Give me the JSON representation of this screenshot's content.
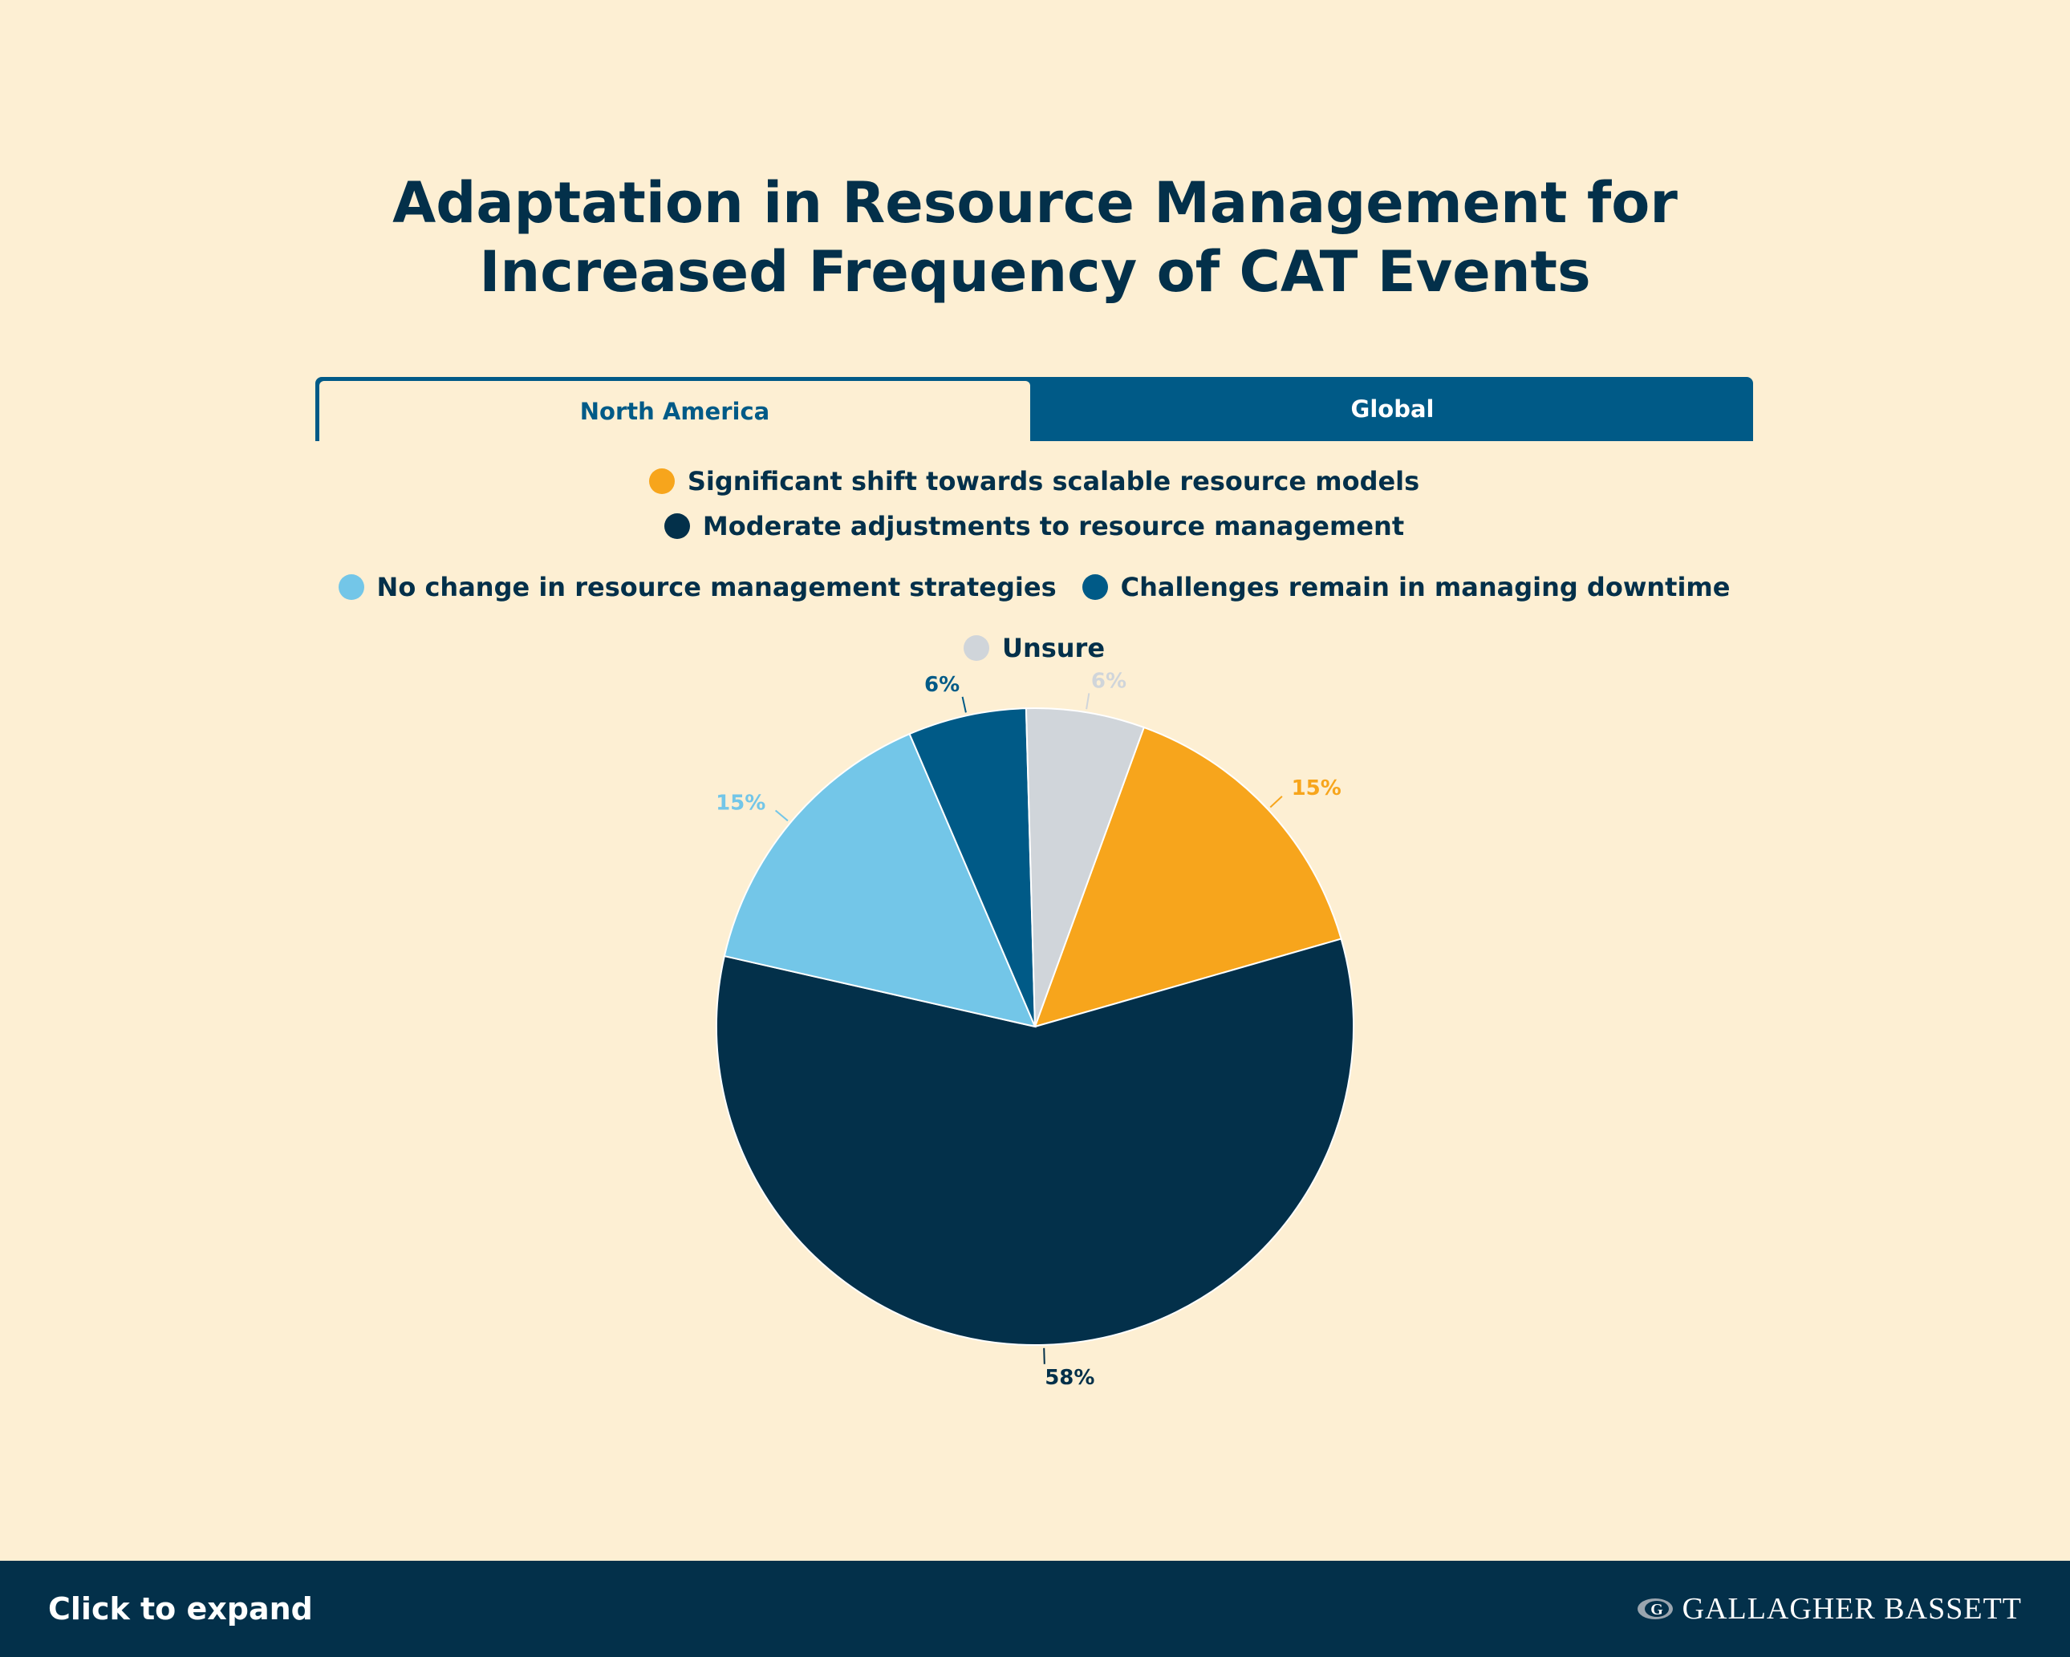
{
  "title": {
    "line1": "Adaptation in Resource Management for",
    "line2": "Increased Frequency of CAT Events"
  },
  "tabs": [
    {
      "label": "North America",
      "active": true
    },
    {
      "label": "Global",
      "active": false
    }
  ],
  "footer": {
    "expand_label": "Click to expand",
    "brand": "GALLAGHER BASSETT",
    "brand_icon": "gallagher-bassett-logo-icon"
  },
  "colors": {
    "background": "#FDEFD3",
    "navy": "#03304A",
    "tab_blue": "#005A87"
  },
  "chart_data": {
    "type": "pie",
    "title": "Adaptation in Resource Management for Increased Frequency of CAT Events",
    "legend_position": "top",
    "slices": [
      {
        "name": "Significant shift towards scalable resource models",
        "value": 15,
        "label": "15%",
        "color": "#F7A51C"
      },
      {
        "name": "Moderate adjustments to resource management",
        "value": 58,
        "label": "58%",
        "color": "#03304A"
      },
      {
        "name": "No change in resource management strategies",
        "value": 15,
        "label": "15%",
        "color": "#73C6E8"
      },
      {
        "name": "Challenges remain in managing downtime",
        "value": 6,
        "label": "6%",
        "color": "#005A87"
      },
      {
        "name": "Unsure",
        "value": 6,
        "label": "6%",
        "color": "#D0D5DA"
      }
    ]
  }
}
